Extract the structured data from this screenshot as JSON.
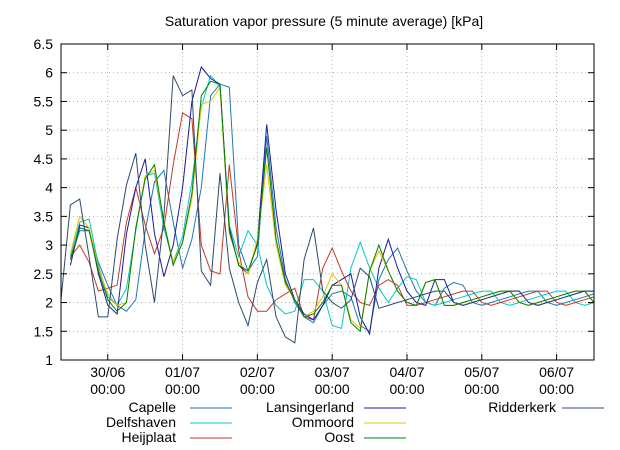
{
  "chart_data": {
    "type": "line",
    "title": "Saturation vapor pressure (5 minute average) [kPa]",
    "xlabel": "",
    "ylabel": "",
    "xlim": [
      "2014-06-29 09:00",
      "2014-07-06 12:00"
    ],
    "ylim": [
      1,
      6.5
    ],
    "y_ticks": [
      1,
      1.5,
      2,
      2.5,
      3,
      3.5,
      4,
      4.5,
      5,
      5.5,
      6,
      6.5
    ],
    "x_ticks": [
      {
        "value": "2014-06-30 00:00",
        "label_lines": [
          "30/06",
          "00:00"
        ]
      },
      {
        "value": "2014-07-01 00:00",
        "label_lines": [
          "01/07",
          "00:00"
        ]
      },
      {
        "value": "2014-07-02 00:00",
        "label_lines": [
          "02/07",
          "00:00"
        ]
      },
      {
        "value": "2014-07-03 00:00",
        "label_lines": [
          "03/07",
          "00:00"
        ]
      },
      {
        "value": "2014-07-04 00:00",
        "label_lines": [
          "04/07",
          "00:00"
        ]
      },
      {
        "value": "2014-07-05 00:00",
        "label_lines": [
          "05/07",
          "00:00"
        ]
      },
      {
        "value": "2014-07-06 00:00",
        "label_lines": [
          "06/07",
          "00:00"
        ]
      }
    ],
    "grid": true,
    "legend_position": "bottom",
    "x": [
      "2014-06-29 09:00",
      "2014-06-29 12:00",
      "2014-06-29 15:00",
      "2014-06-29 18:00",
      "2014-06-29 21:00",
      "2014-06-30 00:00",
      "2014-06-30 03:00",
      "2014-06-30 06:00",
      "2014-06-30 09:00",
      "2014-06-30 12:00",
      "2014-06-30 15:00",
      "2014-06-30 18:00",
      "2014-06-30 21:00",
      "2014-07-01 00:00",
      "2014-07-01 03:00",
      "2014-07-01 06:00",
      "2014-07-01 09:00",
      "2014-07-01 12:00",
      "2014-07-01 15:00",
      "2014-07-01 18:00",
      "2014-07-01 21:00",
      "2014-07-02 00:00",
      "2014-07-02 03:00",
      "2014-07-02 06:00",
      "2014-07-02 09:00",
      "2014-07-02 12:00",
      "2014-07-02 15:00",
      "2014-07-02 18:00",
      "2014-07-02 21:00",
      "2014-07-03 00:00",
      "2014-07-03 03:00",
      "2014-07-03 06:00",
      "2014-07-03 09:00",
      "2014-07-03 12:00",
      "2014-07-03 15:00",
      "2014-07-03 18:00",
      "2014-07-03 21:00",
      "2014-07-04 00:00",
      "2014-07-04 03:00",
      "2014-07-04 06:00",
      "2014-07-04 09:00",
      "2014-07-04 12:00",
      "2014-07-04 15:00",
      "2014-07-04 18:00",
      "2014-07-04 21:00",
      "2014-07-05 00:00",
      "2014-07-05 03:00",
      "2014-07-05 06:00",
      "2014-07-05 09:00",
      "2014-07-05 12:00",
      "2014-07-05 15:00",
      "2014-07-05 18:00",
      "2014-07-05 21:00",
      "2014-07-06 00:00",
      "2014-07-06 03:00",
      "2014-07-06 06:00",
      "2014-07-06 09:00",
      "2014-07-06 12:00"
    ],
    "series": [
      {
        "name": "Capelle",
        "color": "#1f77b4",
        "values": [
          null,
          2.75,
          3.25,
          3.25,
          2.7,
          2.3,
          1.95,
          1.85,
          2.05,
          3.25,
          4.1,
          4.3,
          3.4,
          2.6,
          3.1,
          4.0,
          5.6,
          5.8,
          5.75,
          3.0,
          2.55,
          2.8,
          4.9,
          3.3,
          2.4,
          2.0,
          1.75,
          1.65,
          1.95,
          2.15,
          2.2,
          2.1,
          1.6,
          1.5,
          2.4,
          2.75,
          2.95,
          2.55,
          2.2,
          2.0,
          1.95,
          2.25,
          2.35,
          2.3,
          2.0,
          1.95,
          2.0,
          2.05,
          2.1,
          2.15,
          2.2,
          2.2,
          2.0,
          1.95,
          2.0,
          2.05,
          2.1,
          2.15
        ]
      },
      {
        "name": "Delfshaven",
        "color": "#00c8c8",
        "values": [
          null,
          2.8,
          3.4,
          3.45,
          2.65,
          2.1,
          1.95,
          2.25,
          3.25,
          4.2,
          4.25,
          3.3,
          2.7,
          3.15,
          4.1,
          5.4,
          5.95,
          5.75,
          3.35,
          2.8,
          3.25,
          3.0,
          2.3,
          1.95,
          1.8,
          1.85,
          2.4,
          2.4,
          2.2,
          1.6,
          1.55,
          2.6,
          3.05,
          2.6,
          2.25,
          2.0,
          2.25,
          2.45,
          2.4,
          2.0,
          1.95,
          2.0,
          2.05,
          2.1,
          2.15,
          2.2,
          2.2,
          2.0,
          1.95,
          2.0,
          2.05,
          2.1,
          2.15,
          2.2,
          2.2,
          2.0,
          1.95,
          2.0
        ]
      },
      {
        "name": "Heijplaat",
        "color": "#c0392b",
        "values": [
          null,
          2.8,
          3.0,
          2.7,
          2.2,
          2.25,
          2.3,
          3.4,
          4.0,
          3.35,
          2.85,
          3.3,
          4.4,
          5.3,
          5.2,
          3.0,
          2.55,
          2.5,
          4.4,
          2.9,
          2.1,
          1.85,
          1.85,
          2.05,
          2.15,
          2.25,
          1.75,
          1.7,
          2.6,
          2.95,
          2.55,
          2.2,
          2.0,
          1.95,
          2.3,
          2.4,
          2.3,
          1.95,
          1.95,
          2.0,
          2.05,
          2.1,
          2.15,
          2.2,
          2.2,
          2.0,
          1.95,
          2.0,
          2.05,
          2.1,
          2.15,
          2.2,
          2.2,
          2.0,
          1.95,
          2.0,
          2.05,
          2.1
        ]
      },
      {
        "name": "Lansingerland",
        "color": "#1a1a9e",
        "values": [
          null,
          2.65,
          3.35,
          3.3,
          2.5,
          1.95,
          1.8,
          3.2,
          4.0,
          4.5,
          3.2,
          2.45,
          3.0,
          4.0,
          5.5,
          6.1,
          5.9,
          5.8,
          3.3,
          2.65,
          2.5,
          3.05,
          5.1,
          3.6,
          2.5,
          2.05,
          1.8,
          1.7,
          1.95,
          2.3,
          2.4,
          2.5,
          1.75,
          1.45,
          2.6,
          3.1,
          2.6,
          2.2,
          2.0,
          1.95,
          2.4,
          2.4,
          2.0,
          1.95,
          2.0,
          2.05,
          2.1,
          2.15,
          2.2,
          2.2,
          2.0,
          1.95,
          2.0,
          2.05,
          2.1,
          2.15,
          2.2,
          2.2
        ]
      },
      {
        "name": "Ommoord",
        "color": "#f0c000",
        "values": [
          null,
          2.85,
          3.5,
          3.3,
          2.6,
          2.15,
          1.95,
          2.0,
          3.3,
          4.2,
          4.3,
          3.4,
          2.7,
          3.05,
          3.8,
          5.45,
          5.5,
          5.75,
          3.2,
          2.7,
          2.5,
          3.1,
          4.4,
          3.0,
          2.3,
          2.05,
          1.75,
          1.85,
          2.1,
          2.5,
          2.3,
          1.7,
          1.55,
          2.55,
          2.9,
          2.55,
          2.2,
          2.0,
          1.95,
          2.35,
          2.4,
          1.95,
          1.95,
          2.0,
          2.05,
          2.1,
          2.15,
          2.2,
          2.2,
          2.0,
          1.95,
          2.0,
          2.05,
          2.1,
          2.15,
          2.2,
          2.2,
          2.0
        ]
      },
      {
        "name": "Oost",
        "color": "#008000",
        "values": [
          null,
          2.75,
          3.3,
          3.25,
          2.55,
          2.05,
          1.85,
          2.0,
          3.3,
          4.15,
          4.4,
          3.4,
          2.65,
          3.05,
          3.9,
          5.6,
          5.85,
          5.8,
          3.25,
          2.65,
          2.55,
          3.0,
          4.7,
          3.1,
          2.35,
          2.05,
          1.75,
          1.8,
          2.0,
          2.3,
          2.3,
          1.65,
          1.5,
          2.55,
          3.0,
          2.55,
          2.2,
          2.0,
          1.95,
          2.35,
          2.4,
          1.95,
          1.95,
          2.0,
          2.05,
          2.1,
          2.15,
          2.2,
          2.2,
          2.0,
          1.95,
          2.0,
          2.05,
          2.1,
          2.15,
          2.2,
          2.2,
          2.0
        ]
      },
      {
        "name": "Ridderkerk",
        "color": "#2c4a6b",
        "values": [
          2.05,
          3.7,
          3.8,
          2.8,
          1.75,
          1.75,
          3.1,
          4.05,
          4.6,
          3.0,
          2.0,
          3.5,
          5.95,
          5.6,
          5.7,
          2.55,
          2.3,
          4.25,
          2.6,
          2.0,
          1.6,
          2.35,
          2.75,
          1.75,
          1.4,
          1.3,
          2.75,
          3.3,
          2.2,
          2.0,
          1.9,
          2.05,
          2.6,
          2.45,
          1.9,
          1.95,
          2.0,
          2.05,
          2.1,
          2.15,
          2.2,
          2.2,
          2.0,
          1.95,
          2.0,
          2.05,
          2.1,
          2.15,
          2.2,
          2.2,
          2.0,
          1.95,
          2.0,
          2.05,
          2.1,
          2.15,
          2.2,
          2.2
        ]
      }
    ]
  }
}
